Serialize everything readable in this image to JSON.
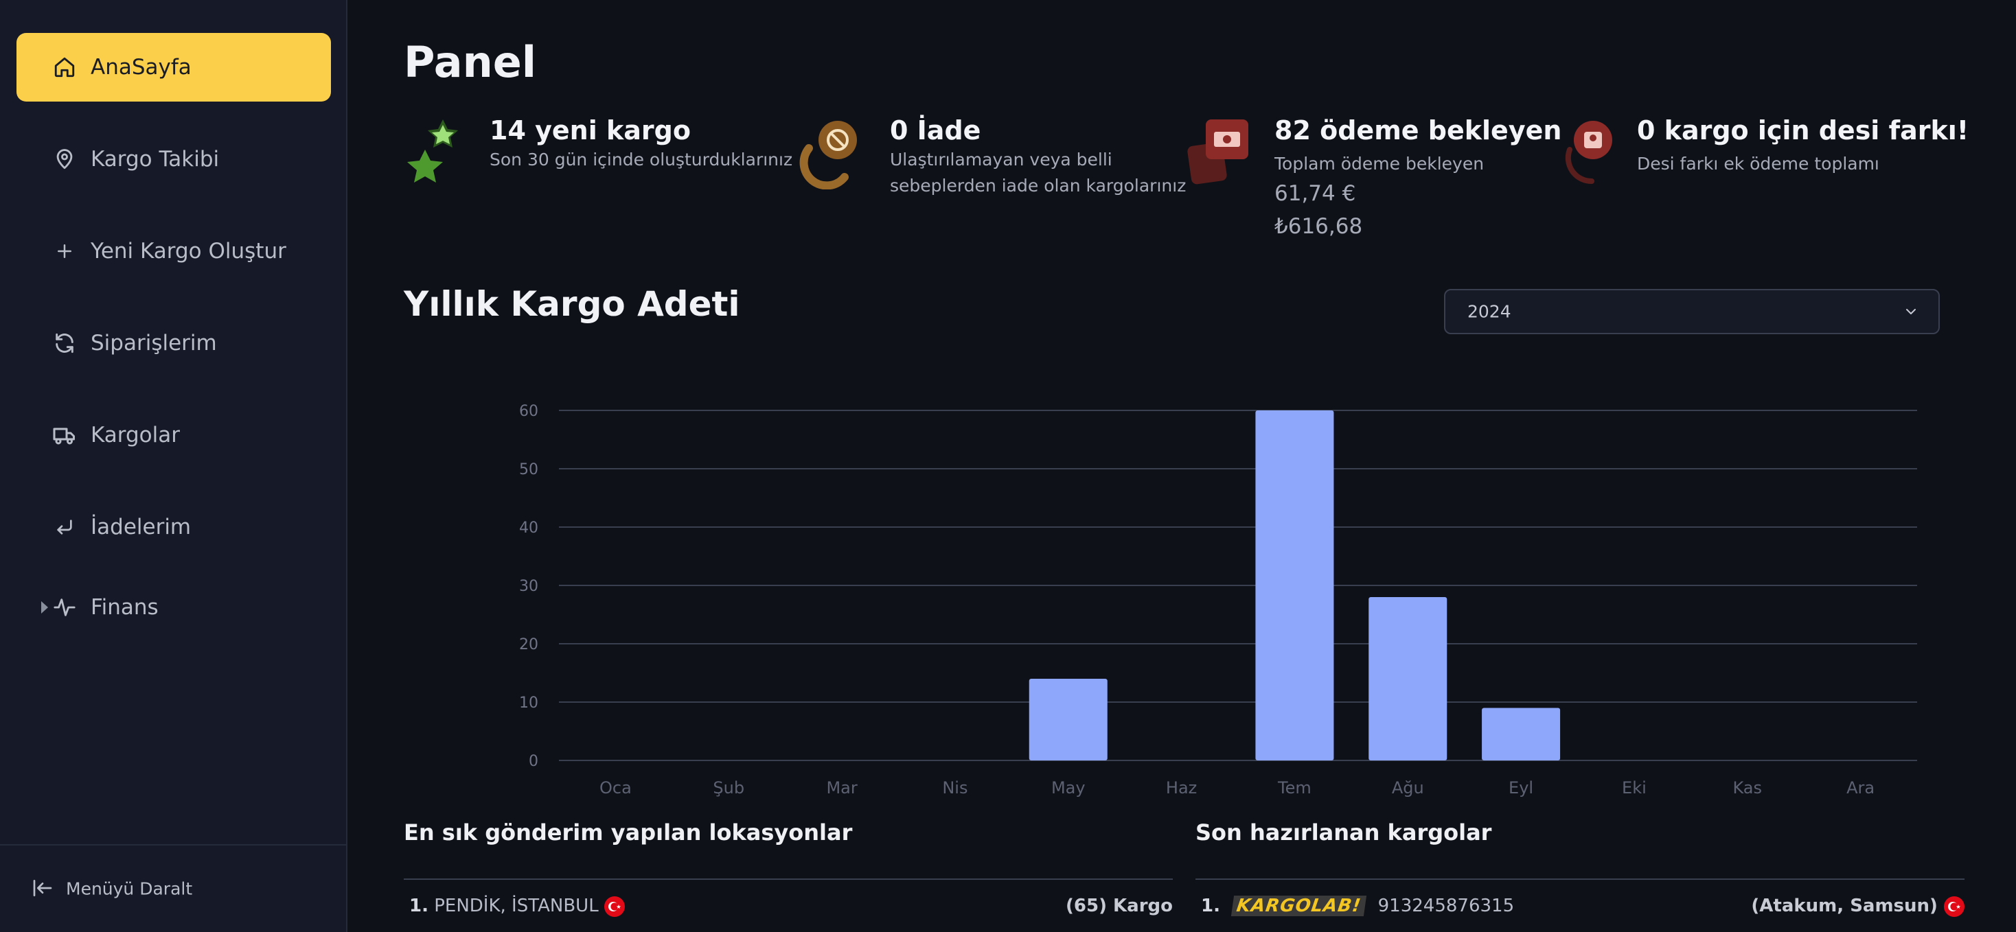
{
  "sidebar": {
    "items": [
      {
        "label": "AnaSayfa",
        "icon": "home-icon",
        "active": true
      },
      {
        "label": "Kargo Takibi",
        "icon": "map-pin-icon"
      },
      {
        "label": "Yeni Kargo Oluştur",
        "icon": "plus-icon"
      },
      {
        "label": "Siparişlerim",
        "icon": "refresh-icon"
      },
      {
        "label": "Kargolar",
        "icon": "truck-icon"
      },
      {
        "label": "İadelerim",
        "icon": "return-arrow-icon"
      },
      {
        "label": "Finans",
        "icon": "activity-icon"
      }
    ],
    "collapse_label": "Menüyü Daralt"
  },
  "page": {
    "title": "Panel"
  },
  "stats": [
    {
      "title": "14 yeni kargo",
      "subtitle": "Son 30 gün içinde oluşturduklarınız",
      "icon": "star-icon"
    },
    {
      "title": "0 İade",
      "subtitle_line1": "Ulaştırılamayan veya belli",
      "subtitle_line2": "sebeplerden iade olan kargolarınız",
      "icon": "block-icon"
    },
    {
      "title": "82 ödeme bekleyen",
      "subtitle": "Toplam ödeme bekleyen",
      "amount_eur": "61,74 €",
      "amount_try": "₺616,68",
      "icon": "money-icon"
    },
    {
      "title": "0 kargo için desi farkı!",
      "subtitle": "Desi farkı ek ödeme toplamı",
      "icon": "scale-icon"
    }
  ],
  "section": {
    "title": "Yıllık Kargo Adeti"
  },
  "year_select": {
    "value": "2024"
  },
  "chart_data": {
    "type": "bar",
    "categories": [
      "Oca",
      "Şub",
      "Mar",
      "Nis",
      "May",
      "Haz",
      "Tem",
      "Ağu",
      "Eyl",
      "Eki",
      "Kas",
      "Ara"
    ],
    "values": [
      0,
      0,
      0,
      0,
      14,
      0,
      60,
      28,
      9,
      0,
      0,
      0
    ],
    "yticks": [
      0,
      10,
      20,
      30,
      40,
      50,
      60
    ],
    "ylim": [
      0,
      60
    ],
    "grid": true,
    "bar_color": "#8ea7fa"
  },
  "locations": {
    "title": "En sık gönderim yapılan lokasyonlar",
    "rows": [
      {
        "rank": "1.",
        "name": "PENDİK, İSTANBUL",
        "count": "(65) Kargo"
      }
    ]
  },
  "recent": {
    "title": "Son hazırlanan kargolar",
    "rows": [
      {
        "rank": "1.",
        "carrier": "KARGOLAB!",
        "tracking": "913245876315",
        "location": "(Atakum, Samsun)"
      }
    ]
  },
  "colors": {
    "accent": "#fccf4a",
    "background": "#0f1119",
    "sidebar": "#161a28"
  }
}
